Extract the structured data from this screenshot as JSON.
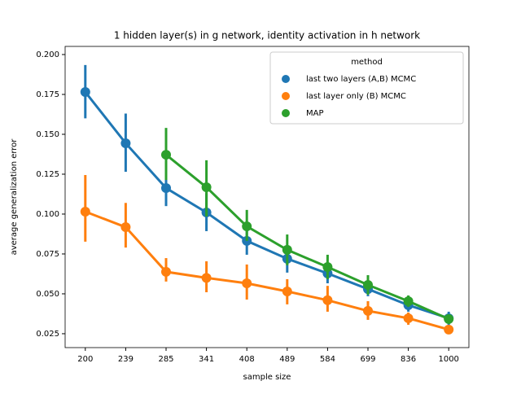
{
  "chart_data": {
    "type": "pointplot",
    "title": "1 hidden layer(s) in g network, identity activation in h network",
    "x_label": "sample size",
    "y_label": "average generalization error",
    "categories": [
      "200",
      "239",
      "285",
      "341",
      "408",
      "489",
      "584",
      "699",
      "836",
      "1000"
    ],
    "ylim": [
      0.0163,
      0.2051
    ],
    "yticks": [
      0.025,
      {
        "value": 0.05,
        "label": "0.050"
      },
      0.075,
      {
        "value": 0.1,
        "label": "0.100"
      },
      0.125,
      {
        "value": 0.15,
        "label": "0.150"
      },
      0.175,
      {
        "value": 0.2,
        "label": "0.200"
      }
    ],
    "legend_title": "method",
    "legend_loc": "upper right",
    "series": [
      {
        "name": "last two layers (A,B) MCMC",
        "color": "#1f77b4",
        "values": [
          0.1765,
          0.1444,
          0.1163,
          0.101,
          0.0832,
          0.072,
          0.0628,
          0.053,
          0.0429,
          0.0347
        ],
        "ci_low": [
          0.16,
          0.1265,
          0.105,
          0.0893,
          0.0745,
          0.0633,
          0.0566,
          0.0485,
          0.0388,
          0.0306
        ],
        "ci_high": [
          0.1934,
          0.163,
          0.1286,
          0.113,
          0.0903,
          0.078,
          0.0679,
          0.0571,
          0.047,
          0.0388
        ]
      },
      {
        "name": "last layer only (B) MCMC",
        "color": "#ff7f0e",
        "values": [
          0.1015,
          0.0918,
          0.0638,
          0.06,
          0.0566,
          0.0515,
          0.046,
          0.0393,
          0.0347,
          0.0276
        ],
        "ci_low": [
          0.0827,
          0.079,
          0.0577,
          0.051,
          0.0464,
          0.0434,
          0.0388,
          0.0337,
          0.0306,
          0.025
        ],
        "ci_high": [
          0.1245,
          0.107,
          0.0724,
          0.0704,
          0.0684,
          0.0592,
          0.055,
          0.0454,
          0.0383,
          0.0296
        ]
      },
      {
        "name": "MAP",
        "color": "#2ca02c",
        "values": [
          null,
          null,
          0.1372,
          0.1168,
          0.0923,
          0.0776,
          0.0668,
          0.0556,
          0.0454,
          0.0342
        ],
        "ci_low": [
          null,
          null,
          0.1214,
          0.0985,
          0.0832,
          0.0679,
          0.0592,
          0.0495,
          0.0418,
          0.0311
        ],
        "ci_high": [
          null,
          null,
          0.154,
          0.1337,
          0.1026,
          0.0872,
          0.0745,
          0.0617,
          0.049,
          0.0372
        ]
      }
    ]
  }
}
